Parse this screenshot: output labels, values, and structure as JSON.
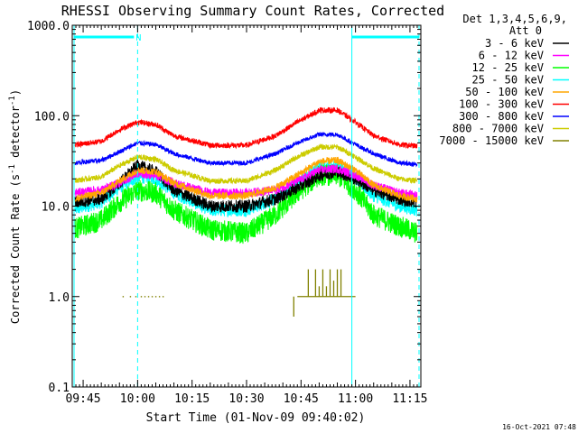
{
  "chart_data": {
    "type": "line",
    "title": "RHESSI Observing Summary Count Rates, Corrected",
    "xlabel": "Start Time (01-Nov-09 09:40:02)",
    "ylabel_main": "Corrected Count Rate (s",
    "ylabel_sup1": "-1",
    "ylabel_mid": " detector",
    "ylabel_sup2": "-1",
    "ylabel_end": ")",
    "footer_timestamp": "16-Oct-2021 07:48",
    "legend_header_line1": "Det 1,3,4,5,6,9,",
    "legend_header_line2": "Att 0",
    "legend_placement": "top-right outside",
    "yscale": "log",
    "ylim": [
      0.1,
      1000
    ],
    "xlim_minutes_after_0940": [
      2,
      98
    ],
    "y_ticks": [
      {
        "value": 1000,
        "label": "1000.0"
      },
      {
        "value": 100,
        "label": "100.0"
      },
      {
        "value": 10,
        "label": "10.0"
      },
      {
        "value": 1,
        "label": "1.0"
      },
      {
        "value": 0.1,
        "label": "0.1"
      }
    ],
    "x_ticks": [
      {
        "minute": 5,
        "label": "09:45"
      },
      {
        "minute": 20,
        "label": "10:00"
      },
      {
        "minute": 35,
        "label": "10:15"
      },
      {
        "minute": 50,
        "label": "10:30"
      },
      {
        "minute": 65,
        "label": "10:45"
      },
      {
        "minute": 80,
        "label": "11:00"
      },
      {
        "minute": 95,
        "label": "11:15"
      }
    ],
    "x_minor_step_minutes": 1,
    "series": [
      {
        "name": "3 - 6 keV",
        "color": "#000000",
        "noise": 0.07,
        "points": [
          [
            2,
            11
          ],
          [
            10,
            12
          ],
          [
            15,
            18
          ],
          [
            20,
            28
          ],
          [
            25,
            24
          ],
          [
            30,
            15
          ],
          [
            40,
            10
          ],
          [
            50,
            10
          ],
          [
            58,
            12
          ],
          [
            64,
            16
          ],
          [
            70,
            22
          ],
          [
            75,
            24
          ],
          [
            80,
            20
          ],
          [
            85,
            15
          ],
          [
            92,
            12
          ],
          [
            97,
            11
          ]
        ]
      },
      {
        "name": "6 - 12 keV",
        "color": "#ff00ff",
        "noise": 0.05,
        "points": [
          [
            2,
            14
          ],
          [
            10,
            15
          ],
          [
            15,
            18
          ],
          [
            20,
            23
          ],
          [
            25,
            22
          ],
          [
            30,
            18
          ],
          [
            40,
            14
          ],
          [
            50,
            14
          ],
          [
            58,
            15
          ],
          [
            64,
            19
          ],
          [
            70,
            25
          ],
          [
            75,
            26
          ],
          [
            80,
            22
          ],
          [
            85,
            17
          ],
          [
            92,
            14
          ],
          [
            97,
            13
          ]
        ]
      },
      {
        "name": "12 - 25 keV",
        "color": "#00ff00",
        "noise": 0.12,
        "points": [
          [
            2,
            5.5
          ],
          [
            10,
            7
          ],
          [
            15,
            11
          ],
          [
            20,
            15
          ],
          [
            25,
            14
          ],
          [
            30,
            9
          ],
          [
            40,
            5.5
          ],
          [
            50,
            5
          ],
          [
            58,
            8
          ],
          [
            64,
            14
          ],
          [
            70,
            22
          ],
          [
            75,
            22
          ],
          [
            80,
            15
          ],
          [
            85,
            8
          ],
          [
            92,
            6
          ],
          [
            97,
            5
          ]
        ]
      },
      {
        "name": "25 - 50 keV",
        "color": "#00ffff",
        "noise": 0.07,
        "points": [
          [
            2,
            9
          ],
          [
            10,
            11
          ],
          [
            15,
            16
          ],
          [
            20,
            21
          ],
          [
            25,
            20
          ],
          [
            30,
            14
          ],
          [
            40,
            9
          ],
          [
            50,
            9
          ],
          [
            58,
            12
          ],
          [
            64,
            18
          ],
          [
            70,
            27
          ],
          [
            75,
            28
          ],
          [
            80,
            20
          ],
          [
            85,
            13
          ],
          [
            92,
            10
          ],
          [
            97,
            9
          ]
        ]
      },
      {
        "name": "50 - 100 keV",
        "color": "#ffa500",
        "noise": 0.04,
        "points": [
          [
            2,
            12
          ],
          [
            10,
            14
          ],
          [
            15,
            19
          ],
          [
            20,
            25
          ],
          [
            25,
            24
          ],
          [
            30,
            18
          ],
          [
            40,
            13
          ],
          [
            50,
            13
          ],
          [
            58,
            16
          ],
          [
            64,
            22
          ],
          [
            70,
            31
          ],
          [
            75,
            32
          ],
          [
            80,
            25
          ],
          [
            85,
            17
          ],
          [
            92,
            13
          ],
          [
            97,
            12
          ]
        ]
      },
      {
        "name": "100 - 300 keV",
        "color": "#ff0000",
        "noise": 0.03,
        "points": [
          [
            2,
            47
          ],
          [
            10,
            52
          ],
          [
            15,
            70
          ],
          [
            20,
            85
          ],
          [
            25,
            80
          ],
          [
            30,
            60
          ],
          [
            40,
            47
          ],
          [
            50,
            47
          ],
          [
            58,
            60
          ],
          [
            64,
            85
          ],
          [
            70,
            115
          ],
          [
            75,
            115
          ],
          [
            80,
            85
          ],
          [
            85,
            60
          ],
          [
            92,
            48
          ],
          [
            97,
            46
          ]
        ]
      },
      {
        "name": "300 - 800 keV",
        "color": "#0000ff",
        "noise": 0.025,
        "points": [
          [
            2,
            30
          ],
          [
            10,
            32
          ],
          [
            15,
            40
          ],
          [
            20,
            50
          ],
          [
            25,
            48
          ],
          [
            30,
            38
          ],
          [
            40,
            30
          ],
          [
            50,
            30
          ],
          [
            58,
            38
          ],
          [
            64,
            50
          ],
          [
            70,
            62
          ],
          [
            75,
            62
          ],
          [
            80,
            48
          ],
          [
            85,
            38
          ],
          [
            92,
            30
          ],
          [
            97,
            29
          ]
        ]
      },
      {
        "name": "800 - 7000 keV",
        "color": "#cccc00",
        "noise": 0.03,
        "points": [
          [
            2,
            19
          ],
          [
            10,
            21
          ],
          [
            15,
            28
          ],
          [
            20,
            35
          ],
          [
            25,
            33
          ],
          [
            30,
            25
          ],
          [
            40,
            19
          ],
          [
            50,
            19
          ],
          [
            58,
            25
          ],
          [
            64,
            35
          ],
          [
            70,
            45
          ],
          [
            75,
            45
          ],
          [
            80,
            35
          ],
          [
            85,
            26
          ],
          [
            92,
            20
          ],
          [
            97,
            19
          ]
        ]
      },
      {
        "name": "7000 - 15000 keV",
        "color": "#808000",
        "noise": 0,
        "points": [
          [
            16,
            1.0
          ],
          [
            18,
            1.0
          ],
          [
            19.5,
            1.0
          ],
          [
            21,
            1.0
          ],
          [
            22,
            1.0
          ],
          [
            23,
            1.0
          ],
          [
            24,
            1.0
          ],
          [
            25,
            1.0
          ],
          [
            26,
            1.0
          ],
          [
            27,
            1.0
          ]
        ],
        "segments": [
          [
            [
              63,
              0.6
            ],
            [
              63,
              1.0
            ]
          ],
          [
            [
              64,
              1.0
            ],
            [
              80,
              1.0
            ]
          ],
          [
            [
              67,
              1.0
            ],
            [
              67,
              2.0
            ]
          ],
          [
            [
              69,
              1.0
            ],
            [
              69,
              2.0
            ]
          ],
          [
            [
              70,
              1.0
            ],
            [
              70,
              1.3
            ]
          ],
          [
            [
              71,
              1.0
            ],
            [
              71,
              2.0
            ]
          ],
          [
            [
              72,
              1.0
            ],
            [
              72,
              1.3
            ]
          ],
          [
            [
              73,
              1.0
            ],
            [
              73,
              2.0
            ]
          ],
          [
            [
              74,
              1.0
            ],
            [
              74,
              1.5
            ]
          ],
          [
            [
              75,
              1.0
            ],
            [
              75,
              2.0
            ]
          ],
          [
            [
              76,
              1.0
            ],
            [
              76,
              2.0
            ]
          ]
        ],
        "plot_as": "marks"
      }
    ],
    "flag_lines": [
      {
        "name": "night-start",
        "minute": 2.5,
        "style": "solid"
      },
      {
        "name": "saa-end",
        "minute": 20,
        "style": "dashed"
      },
      {
        "name": "night-end",
        "minute": 79,
        "style": "solid"
      },
      {
        "name": "end-dashed",
        "minute": 97.5,
        "style": "dashed"
      }
    ],
    "flag_bars": [
      {
        "from": 2.5,
        "to": 19,
        "label": "N"
      },
      {
        "from": 79,
        "to": 97.5,
        "label": ""
      }
    ],
    "flag_color": "#00ffff"
  }
}
